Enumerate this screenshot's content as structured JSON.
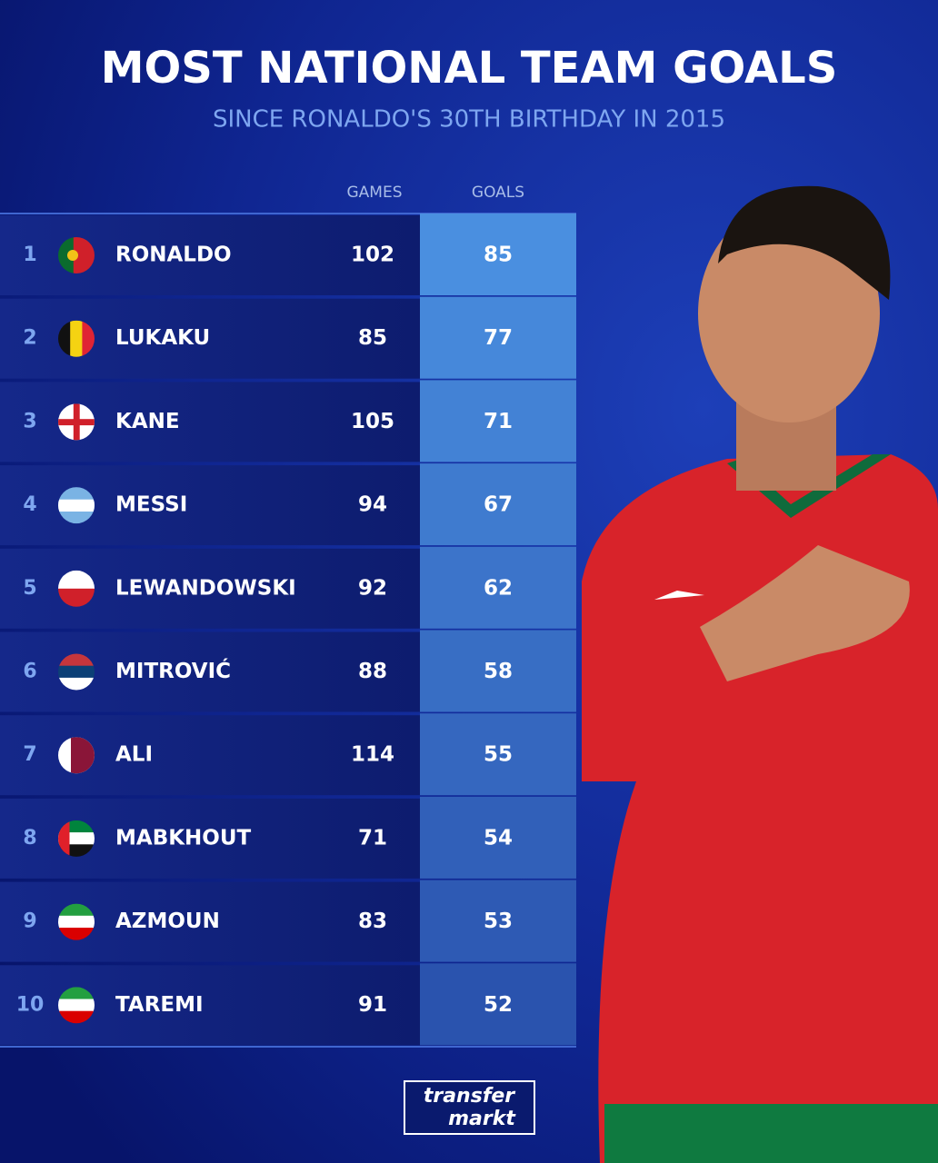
{
  "header": {
    "title": "MOST NATIONAL TEAM GOALS",
    "subtitle": "SINCE RONALDO'S 30TH BIRTHDAY IN 2015"
  },
  "table": {
    "columns": [
      "GAMES",
      "GOALS"
    ],
    "rows": [
      {
        "rank": "1",
        "name": "RONALDO",
        "games": "102",
        "goals": "85"
      },
      {
        "rank": "2",
        "name": "LUKAKU",
        "games": "85",
        "goals": "77"
      },
      {
        "rank": "3",
        "name": "KANE",
        "games": "105",
        "goals": "71"
      },
      {
        "rank": "4",
        "name": "MESSI",
        "games": "94",
        "goals": "67"
      },
      {
        "rank": "5",
        "name": "LEWANDOWSKI",
        "games": "92",
        "goals": "62"
      },
      {
        "rank": "6",
        "name": "MITROVIĆ",
        "games": "88",
        "goals": "58"
      },
      {
        "rank": "7",
        "name": "ALI",
        "games": "114",
        "goals": "55"
      },
      {
        "rank": "8",
        "name": "MABKHOUT",
        "games": "71",
        "goals": "54"
      },
      {
        "rank": "9",
        "name": "AZMOUN",
        "games": "83",
        "goals": "53"
      },
      {
        "rank": "10",
        "name": "TAREMI",
        "games": "91",
        "goals": "52"
      }
    ]
  },
  "logo": {
    "line1": "transfer",
    "line2": "markt"
  }
}
